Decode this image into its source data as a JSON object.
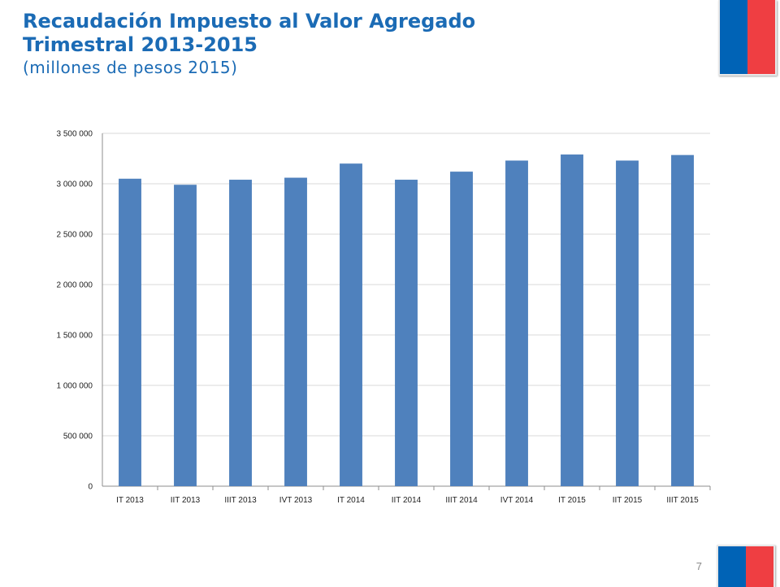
{
  "header": {
    "title": "Recaudación Impuesto al Valor Agregado\nTrimestral 2013-2015",
    "subtitle": "(millones de pesos 2015)"
  },
  "page_number": "7",
  "colors": {
    "title": "#1b6bb5",
    "bar": "#4f81bd",
    "flag_blue": "#0063b6",
    "flag_red": "#ef3e42"
  },
  "chart_data": {
    "type": "bar",
    "title": "",
    "xlabel": "",
    "ylabel": "",
    "categories": [
      "IT 2013",
      "IIT 2013",
      "IIIT 2013",
      "IVT 2013",
      "IT 2014",
      "IIT 2014",
      "IIIT 2014",
      "IVT 2014",
      "IT 2015",
      "IIT 2015",
      "IIIT 2015"
    ],
    "values": [
      3050000,
      2990000,
      3040000,
      3060000,
      3200000,
      3040000,
      3120000,
      3230000,
      3290000,
      3230000,
      3285000
    ],
    "ylim": [
      0,
      3500000
    ],
    "yticks": [
      0,
      500000,
      1000000,
      1500000,
      2000000,
      2500000,
      3000000,
      3500000
    ],
    "ytick_labels": [
      "0",
      "500 000",
      "1 000 000",
      "1 500 000",
      "2 000 000",
      "2 500 000",
      "3 000 000",
      "3 500 000"
    ],
    "grid": true,
    "legend": "none"
  }
}
